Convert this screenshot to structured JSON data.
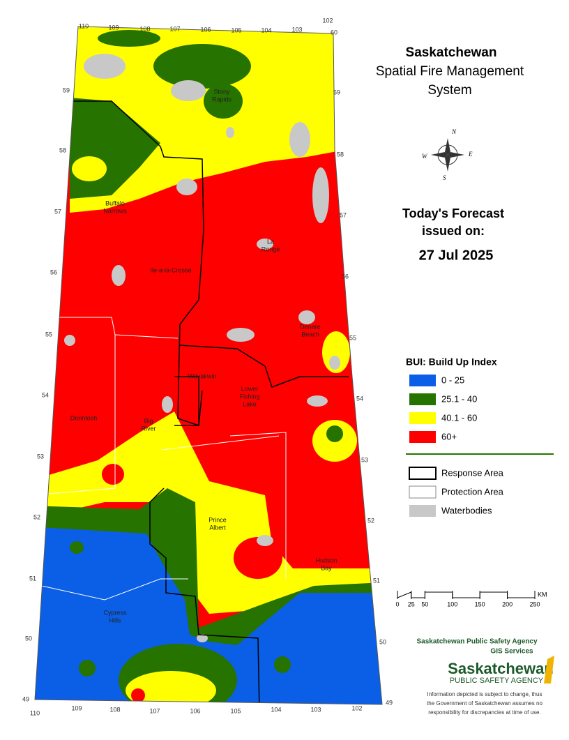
{
  "title": [
    "Saskatchewan",
    "Spatial Fire Management",
    "System"
  ],
  "compass": [
    "N",
    "E",
    "S",
    "W"
  ],
  "forecast": {
    "heading": [
      "Today's Forecast",
      "issued on:"
    ],
    "date": "27 Jul 2025"
  },
  "legend": {
    "title": "BUI: Build Up Index",
    "classes": [
      {
        "label": "0 - 25",
        "color": "#0a5fe6"
      },
      {
        "label": "25.1 - 40",
        "color": "#267300"
      },
      {
        "label": "40.1 - 60",
        "color": "#ffff00"
      },
      {
        "label": "60+",
        "color": "#ff0000"
      }
    ],
    "layers": [
      {
        "label": "Response Area"
      },
      {
        "label": "Protection Area"
      },
      {
        "label": "Waterbodies"
      }
    ]
  },
  "places": [
    [
      "Stony",
      "Rapids"
    ],
    [
      "Buffalo",
      "Narrows"
    ],
    [
      "La",
      "Ronge"
    ],
    [
      "Ile-a-la-Crosse"
    ],
    [
      "Denare",
      "Beach"
    ],
    [
      "Weyakwin"
    ],
    [
      "Lower",
      "Fishing",
      "Lake"
    ],
    [
      "Dorintosh"
    ],
    [
      "Big",
      "River"
    ],
    [
      "Prince",
      "Albert"
    ],
    [
      "Hudson",
      "Bay"
    ],
    [
      "Cypress",
      "Hills"
    ]
  ],
  "lat_left": [
    59,
    58,
    57,
    56,
    55,
    54,
    53,
    52,
    51,
    50,
    49
  ],
  "lat_right": [
    60,
    59,
    58,
    57,
    56,
    55,
    54,
    53,
    52,
    51,
    50,
    49
  ],
  "lon_top": [
    110,
    109,
    108,
    107,
    106,
    105,
    104,
    103,
    102
  ],
  "lon_bottom": [
    110,
    109,
    108,
    107,
    106,
    105,
    104,
    103,
    102
  ],
  "scale": {
    "unit": "KM",
    "ticks": [
      0,
      25,
      50,
      100,
      150,
      200,
      250
    ]
  },
  "agency": {
    "name": "Saskatchewan Public Safety Agency",
    "unit": "GIS  Services",
    "logo": [
      "Saskatchewan",
      "PUBLIC SAFETY AGENCY"
    ]
  },
  "disclaimer": [
    "Information depicted is subject to change, thus",
    "the Government of Saskatchewan assumes no",
    "responsibility for discrepancies at time of use."
  ]
}
